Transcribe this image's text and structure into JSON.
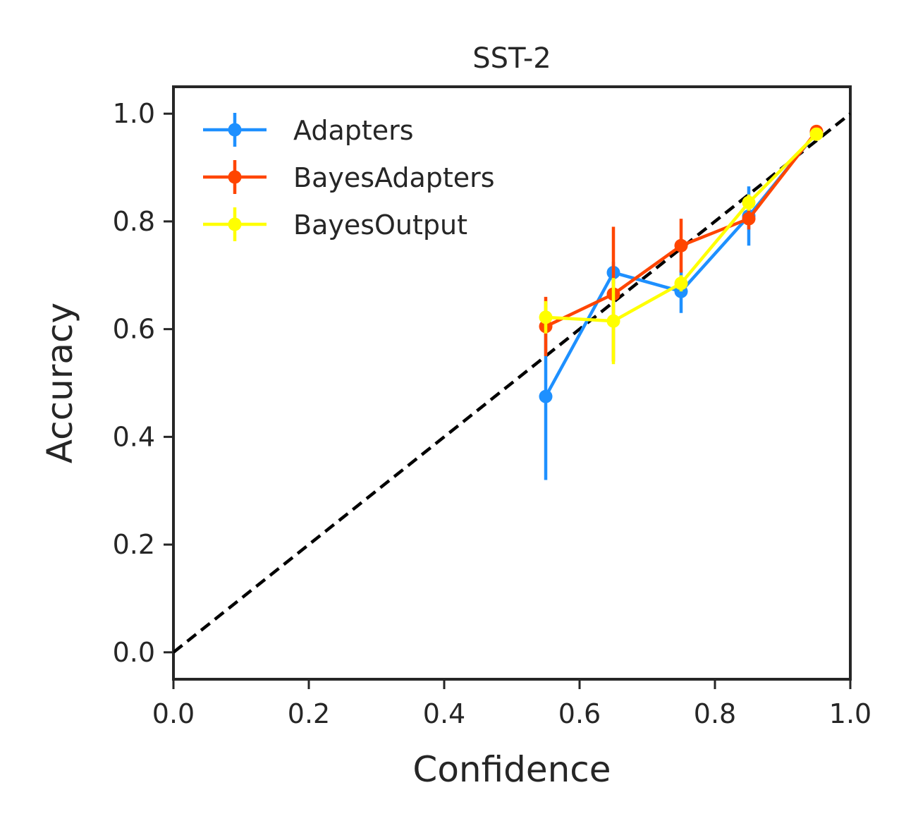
{
  "chart_data": {
    "type": "line",
    "title": "SST-2",
    "xlabel": "Confidence",
    "ylabel": "Accuracy",
    "xlim": [
      0.0,
      1.0
    ],
    "ylim": [
      -0.05,
      1.05
    ],
    "xticks": [
      "0.0",
      "0.2",
      "0.4",
      "0.6",
      "0.8",
      "1.0"
    ],
    "yticks": [
      "0.0",
      "0.2",
      "0.4",
      "0.6",
      "0.8",
      "1.0"
    ],
    "grid": false,
    "legend_position": "top-left",
    "reference_line": {
      "style": "dashed",
      "color": "#000000",
      "points": [
        [
          0,
          0
        ],
        [
          1,
          1
        ]
      ]
    },
    "series": [
      {
        "name": "Adapters",
        "color": "#1e90ff",
        "x": [
          0.55,
          0.65,
          0.75,
          0.85,
          0.95
        ],
        "y": [
          0.475,
          0.705,
          0.67,
          0.81,
          0.965
        ],
        "err": [
          0.155,
          0.02,
          0.04,
          0.055,
          0.01
        ]
      },
      {
        "name": "BayesAdapters",
        "color": "#ff4500",
        "x": [
          0.55,
          0.65,
          0.75,
          0.85,
          0.95
        ],
        "y": [
          0.605,
          0.665,
          0.755,
          0.805,
          0.967
        ],
        "err": [
          0.055,
          0.125,
          0.05,
          0.02,
          0.01
        ]
      },
      {
        "name": "BayesOutput",
        "color": "#ffff00",
        "x": [
          0.55,
          0.65,
          0.75,
          0.85,
          0.95
        ],
        "y": [
          0.622,
          0.615,
          0.685,
          0.835,
          0.962
        ],
        "err": [
          0.03,
          0.08,
          0.015,
          0.015,
          0.01
        ]
      }
    ]
  }
}
